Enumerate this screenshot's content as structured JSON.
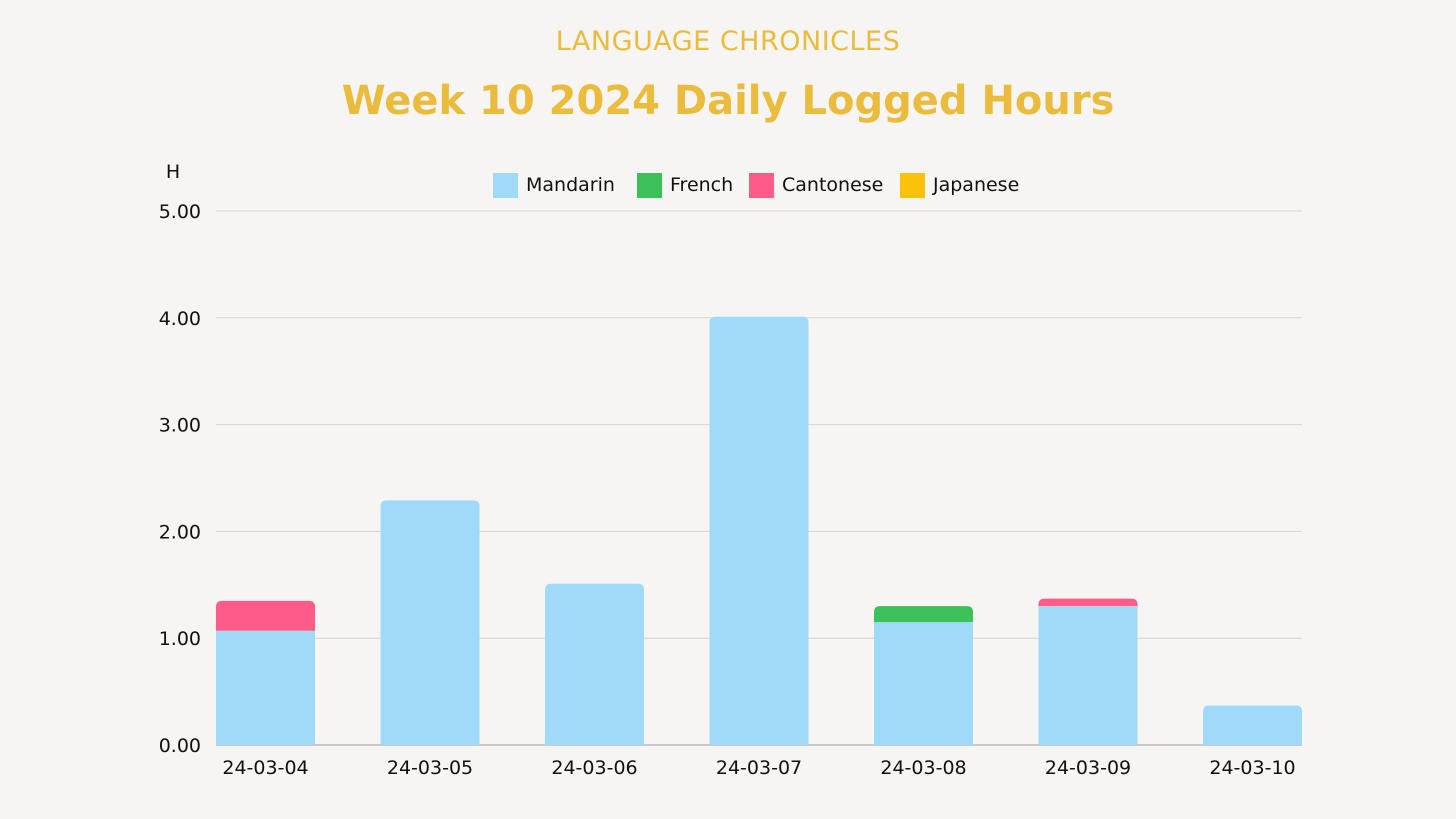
{
  "header": {
    "brand": "LANGUAGE CHRONICLES",
    "title": "Week 10 2024 Daily Logged Hours"
  },
  "chart_data": {
    "type": "bar",
    "stacked": true,
    "title": "Week 10 2024 Daily Logged Hours",
    "xlabel": "",
    "ylabel": "H",
    "ylim": [
      0,
      5
    ],
    "yticks": [
      "0.00",
      "1.00",
      "2.00",
      "3.00",
      "4.00",
      "5.00"
    ],
    "grid": true,
    "legend_position": "top",
    "categories": [
      "24-03-04",
      "24-03-05",
      "24-03-06",
      "24-03-07",
      "24-03-08",
      "24-03-09",
      "24-03-10"
    ],
    "series": [
      {
        "name": "Mandarin",
        "color": "#a0daf9",
        "values": [
          1.07,
          2.29,
          1.51,
          4.01,
          1.15,
          1.3,
          0.37
        ]
      },
      {
        "name": "French",
        "color": "#3cc05a",
        "values": [
          0,
          0,
          0,
          0,
          0.15,
          0,
          0
        ]
      },
      {
        "name": "Cantonese",
        "color": "#fc5c87",
        "values": [
          0.28,
          0,
          0,
          0,
          0,
          0.07,
          0
        ]
      },
      {
        "name": "Japanese",
        "color": "#fcc10a",
        "values": [
          0,
          0,
          0,
          0,
          0,
          0,
          0
        ]
      }
    ]
  }
}
